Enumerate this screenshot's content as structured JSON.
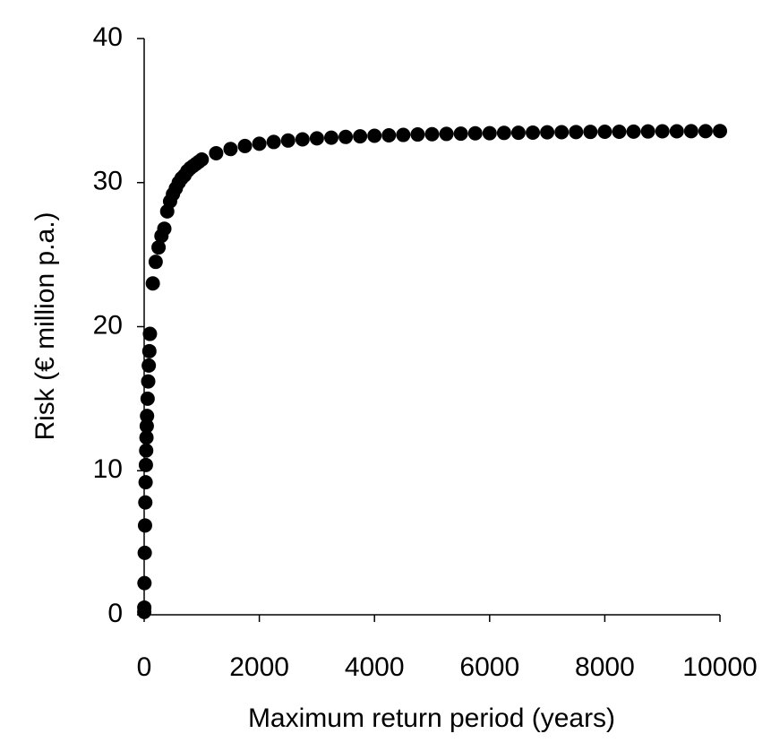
{
  "chart_data": {
    "type": "scatter",
    "x_label": "Maximum return period (years)",
    "y_label": "Risk (€ million p.a.)",
    "color": "#000000",
    "xlim": [
      0,
      10000
    ],
    "xticks": [
      0,
      2000,
      4000,
      6000,
      8000,
      10000
    ],
    "ylim": [
      0,
      40
    ],
    "yticks": [
      0,
      10,
      20,
      30,
      40
    ],
    "grid": false,
    "x": [
      1,
      2,
      5,
      10,
      15,
      20,
      25,
      30,
      35,
      40,
      45,
      50,
      60,
      70,
      80,
      90,
      100,
      150,
      200,
      250,
      300,
      350,
      400,
      450,
      500,
      550,
      600,
      650,
      700,
      750,
      800,
      850,
      900,
      950,
      1000,
      1250,
      1500,
      1750,
      2000,
      2250,
      2500,
      2750,
      3000,
      3250,
      3500,
      3750,
      4000,
      4250,
      4500,
      4750,
      5000,
      5250,
      5500,
      5750,
      6000,
      6250,
      6500,
      6750,
      7000,
      7250,
      7500,
      7750,
      8000,
      8250,
      8500,
      8750,
      9000,
      9250,
      9500,
      9750,
      10000
    ],
    "values": [
      0.2,
      0.5,
      2.2,
      4.3,
      6.2,
      7.8,
      9.2,
      10.4,
      11.4,
      12.3,
      13.1,
      13.8,
      15,
      16.2,
      17.3,
      18.3,
      19.5,
      23,
      24.5,
      25.5,
      26.3,
      26.8,
      28,
      28.7,
      29.2,
      29.6,
      30,
      30.3,
      30.5,
      30.8,
      31,
      31.15,
      31.3,
      31.45,
      31.6,
      32.04,
      32.33,
      32.54,
      32.7,
      32.82,
      32.92,
      33,
      33.07,
      33.12,
      33.17,
      33.21,
      33.25,
      33.28,
      33.31,
      33.34,
      33.36,
      33.38,
      33.4,
      33.42,
      33.43,
      33.45,
      33.46,
      33.47,
      33.49,
      33.5,
      33.51,
      33.52,
      33.53,
      33.53,
      33.54,
      33.55,
      33.56,
      33.56,
      33.57,
      33.57,
      33.58
    ]
  }
}
